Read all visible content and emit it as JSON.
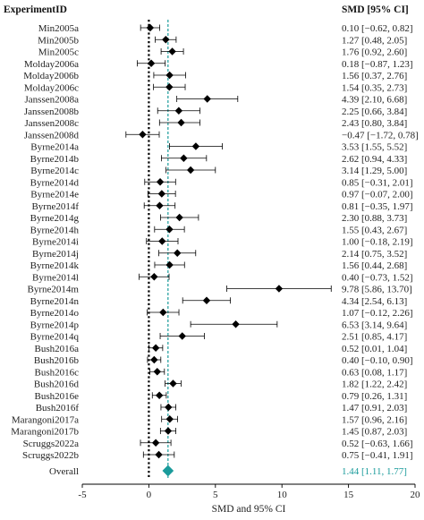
{
  "chart_data": {
    "type": "forest",
    "header_left": "ExperimentID",
    "header_right": "SMD [95% CI]",
    "xlabel": "SMD and 95% CI",
    "xlim": [
      -5,
      20
    ],
    "xticks": [
      -5,
      0,
      5,
      10,
      15,
      20
    ],
    "null_line": 0,
    "pooled_line": 1.44,
    "colors": {
      "study": "#000000",
      "overall": "#1a9b9b",
      "pooled_line": "#1a9b9b"
    },
    "studies": [
      {
        "id": "Min2005a",
        "smd": 0.1,
        "lo": -0.62,
        "hi": 0.82,
        "text": "0.10 [−0.62, 0.82]"
      },
      {
        "id": "Min2005b",
        "smd": 1.27,
        "lo": 0.48,
        "hi": 2.05,
        "text": "1.27 [0.48, 2.05]"
      },
      {
        "id": "Min2005c",
        "smd": 1.76,
        "lo": 0.92,
        "hi": 2.6,
        "text": "1.76 [0.92, 2.60]"
      },
      {
        "id": "Molday2006a",
        "smd": 0.18,
        "lo": -0.87,
        "hi": 1.23,
        "text": "0.18 [−0.87, 1.23]"
      },
      {
        "id": "Molday2006b",
        "smd": 1.56,
        "lo": 0.37,
        "hi": 2.76,
        "text": "1.56 [0.37, 2.76]"
      },
      {
        "id": "Molday2006c",
        "smd": 1.54,
        "lo": 0.35,
        "hi": 2.73,
        "text": "1.54 [0.35, 2.73]"
      },
      {
        "id": "Janssen2008a",
        "smd": 4.39,
        "lo": 2.1,
        "hi": 6.68,
        "text": "4.39 [2.10, 6.68]"
      },
      {
        "id": "Janssen2008b",
        "smd": 2.25,
        "lo": 0.66,
        "hi": 3.84,
        "text": "2.25 [0.66, 3.84]"
      },
      {
        "id": "Janssen2008c",
        "smd": 2.43,
        "lo": 0.8,
        "hi": 3.84,
        "text": "2.43 [0.80, 3.84]"
      },
      {
        "id": "Janssen2008d",
        "smd": -0.47,
        "lo": -1.72,
        "hi": 0.78,
        "text": "−0.47 [−1.72, 0.78]"
      },
      {
        "id": "Byrne2014a",
        "smd": 3.53,
        "lo": 1.55,
        "hi": 5.52,
        "text": "3.53 [1.55, 5.52]"
      },
      {
        "id": "Byrne2014b",
        "smd": 2.62,
        "lo": 0.94,
        "hi": 4.33,
        "text": "2.62 [0.94, 4.33]"
      },
      {
        "id": "Byrne2014c",
        "smd": 3.14,
        "lo": 1.29,
        "hi": 5.0,
        "text": "3.14 [1.29, 5.00]"
      },
      {
        "id": "Byrne2014d",
        "smd": 0.85,
        "lo": -0.31,
        "hi": 2.01,
        "text": "0.85 [−0.31, 2.01]"
      },
      {
        "id": "Byrne2014e",
        "smd": 0.97,
        "lo": -0.07,
        "hi": 2.0,
        "text": "0.97 [−0.07, 2.00]"
      },
      {
        "id": "Byrne2014f",
        "smd": 0.81,
        "lo": -0.35,
        "hi": 1.97,
        "text": "0.81 [−0.35, 1.97]"
      },
      {
        "id": "Byrne2014g",
        "smd": 2.3,
        "lo": 0.88,
        "hi": 3.73,
        "text": "2.30 [0.88, 3.73]"
      },
      {
        "id": "Byrne2014h",
        "smd": 1.55,
        "lo": 0.43,
        "hi": 2.67,
        "text": "1.55 [0.43, 2.67]"
      },
      {
        "id": "Byrne2014i",
        "smd": 1.0,
        "lo": -0.18,
        "hi": 2.19,
        "text": "1.00 [−0.18, 2.19]"
      },
      {
        "id": "Byrne2014j",
        "smd": 2.14,
        "lo": 0.75,
        "hi": 3.52,
        "text": "2.14 [0.75, 3.52]"
      },
      {
        "id": "Byrne2014k",
        "smd": 1.56,
        "lo": 0.44,
        "hi": 2.68,
        "text": "1.56 [0.44, 2.68]"
      },
      {
        "id": "Byrne2014l",
        "smd": 0.4,
        "lo": -0.73,
        "hi": 1.52,
        "text": "0.40 [−0.73, 1.52]"
      },
      {
        "id": "Byrne2014m",
        "smd": 9.78,
        "lo": 5.86,
        "hi": 13.7,
        "text": "9.78 [5.86, 13.70]"
      },
      {
        "id": "Byrne2014n",
        "smd": 4.34,
        "lo": 2.54,
        "hi": 6.13,
        "text": "4.34 [2.54, 6.13]"
      },
      {
        "id": "Byrne2014o",
        "smd": 1.07,
        "lo": -0.12,
        "hi": 2.26,
        "text": "1.07 [−0.12, 2.26]"
      },
      {
        "id": "Byrne2014p",
        "smd": 6.53,
        "lo": 3.14,
        "hi": 9.64,
        "text": "6.53 [3.14, 9.64]"
      },
      {
        "id": "Byrne2014q",
        "smd": 2.51,
        "lo": 0.85,
        "hi": 4.17,
        "text": "2.51 [0.85, 4.17]"
      },
      {
        "id": "Bush2016a",
        "smd": 0.52,
        "lo": 0.01,
        "hi": 1.04,
        "text": "0.52 [0.01, 1.04]"
      },
      {
        "id": "Bush2016b",
        "smd": 0.4,
        "lo": -0.1,
        "hi": 0.9,
        "text": "0.40 [−0.10, 0.90]"
      },
      {
        "id": "Bush2016c",
        "smd": 0.63,
        "lo": 0.08,
        "hi": 1.17,
        "text": "0.63 [0.08, 1.17]"
      },
      {
        "id": "Bush2016d",
        "smd": 1.82,
        "lo": 1.22,
        "hi": 2.42,
        "text": "1.82 [1.22, 2.42]"
      },
      {
        "id": "Bush2016e",
        "smd": 0.79,
        "lo": 0.26,
        "hi": 1.31,
        "text": "0.79 [0.26, 1.31]"
      },
      {
        "id": "Bush2016f",
        "smd": 1.47,
        "lo": 0.91,
        "hi": 2.03,
        "text": "1.47 [0.91, 2.03]"
      },
      {
        "id": "Marangoni2017a",
        "smd": 1.57,
        "lo": 0.96,
        "hi": 2.16,
        "text": "1.57 [0.96, 2.16]"
      },
      {
        "id": "Marangoni2017b",
        "smd": 1.45,
        "lo": 0.87,
        "hi": 2.03,
        "text": "1.45 [0.87, 2.03]"
      },
      {
        "id": "Scruggs2022a",
        "smd": 0.52,
        "lo": -0.63,
        "hi": 1.66,
        "text": "0.52 [−0.63, 1.66]"
      },
      {
        "id": "Scruggs2022b",
        "smd": 0.75,
        "lo": -0.41,
        "hi": 1.91,
        "text": "0.75 [−0.41, 1.91]"
      }
    ],
    "overall": {
      "id": "Overall",
      "smd": 1.44,
      "lo": 1.11,
      "hi": 1.77,
      "text": "1.44 [1.11, 1.77]"
    }
  }
}
